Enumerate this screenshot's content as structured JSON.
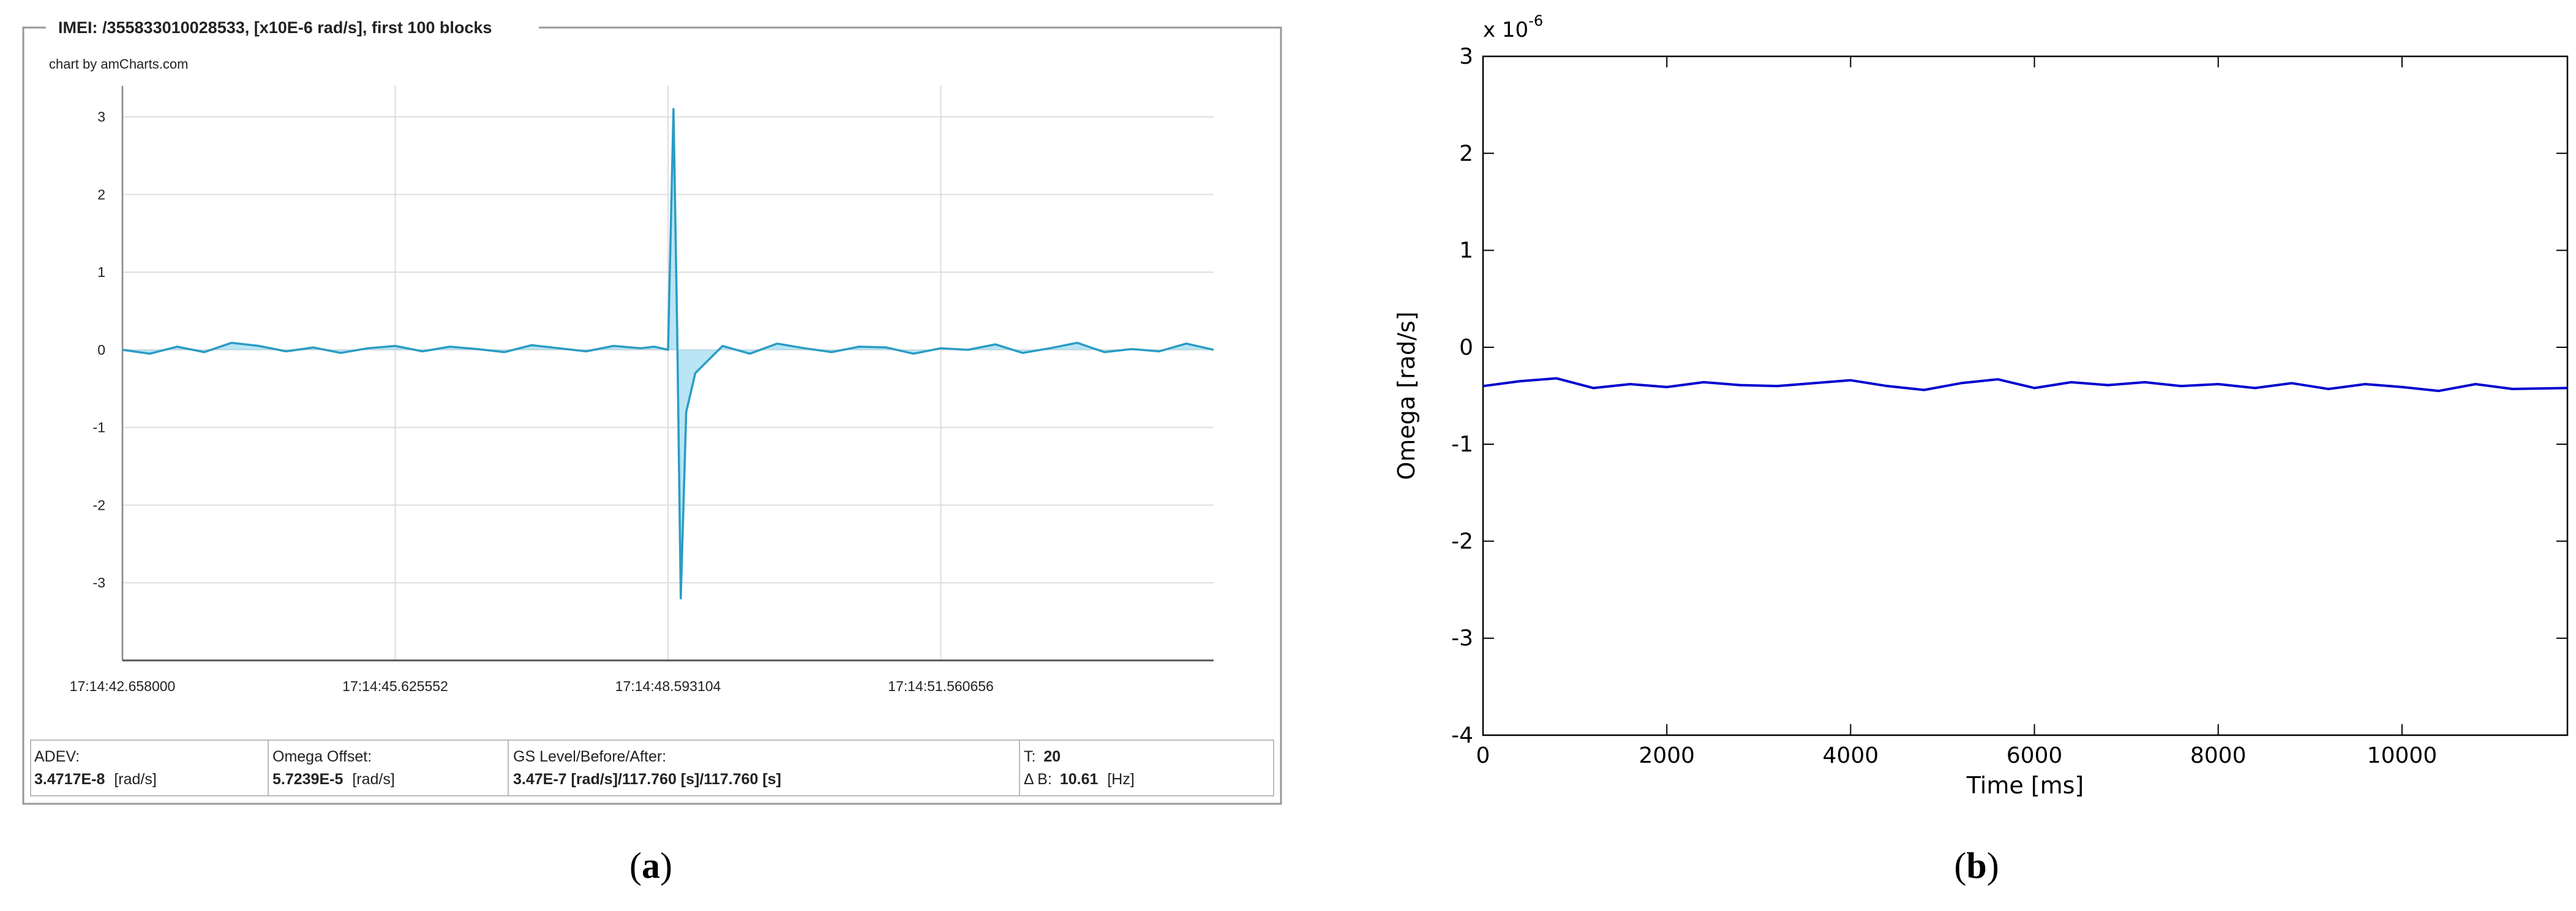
{
  "panel_a": {
    "legend_title": "IMEI: /355833010028533, [x10E-6 rad/s], first 100 blocks",
    "credit": "chart by amCharts.com",
    "caption_letter": "a",
    "info": {
      "adev_label": "ADEV:",
      "adev_value": "3.4717E-8",
      "adev_unit": "[rad/s]",
      "offset_label": "Omega Offset:",
      "offset_value": "5.7239E-5",
      "offset_unit": "[rad/s]",
      "gs_label": "GS Level/Before/After:",
      "gs_value": "3.47E-7 [rad/s]/117.760 [s]/117.760 [s]",
      "t_label": "T:",
      "t_value": "20",
      "db_label": "Δ B:",
      "db_value": "10.61",
      "db_unit": "[Hz]"
    }
  },
  "panel_b": {
    "exponent_label": "x 10",
    "exponent_power": "-6",
    "caption_letter": "b"
  },
  "colors": {
    "series_a": "#2a9cc4",
    "fill_a": "#7fd0ec",
    "series_b": "#0000d0",
    "grid_a": "#dddddd",
    "frame": "#888888"
  },
  "chart_data": [
    {
      "type": "area",
      "title": "IMEI: /355833010028533, [x10E-6 rad/s], first 100 blocks",
      "xlabel": "",
      "ylabel": "",
      "x_tick_labels": [
        "17:14:42.658000",
        "17:14:45.625552",
        "17:14:48.593104",
        "17:14:51.560656"
      ],
      "y_ticks": [
        -3,
        -2,
        -1,
        0,
        1,
        2,
        3
      ],
      "ylim": [
        -4.0,
        3.4
      ],
      "xlim": [
        0,
        12
      ],
      "grid": true,
      "series": [
        {
          "name": "Omega",
          "x": [
            0,
            0.3,
            0.6,
            0.9,
            1.2,
            1.5,
            1.8,
            2.1,
            2.4,
            2.7,
            3.0,
            3.3,
            3.6,
            3.9,
            4.2,
            4.5,
            4.8,
            5.1,
            5.4,
            5.7,
            5.85,
            6.0,
            6.06,
            6.1,
            6.14,
            6.2,
            6.3,
            6.6,
            6.9,
            7.2,
            7.5,
            7.8,
            8.1,
            8.4,
            8.7,
            9.0,
            9.3,
            9.6,
            9.9,
            10.2,
            10.5,
            10.8,
            11.1,
            11.4,
            11.7,
            12.0
          ],
          "values": [
            0.0,
            -0.05,
            0.04,
            -0.03,
            0.09,
            0.05,
            -0.02,
            0.03,
            -0.04,
            0.02,
            0.05,
            -0.02,
            0.04,
            0.01,
            -0.03,
            0.06,
            0.02,
            -0.02,
            0.05,
            0.02,
            0.04,
            0.0,
            3.1,
            0.3,
            -3.2,
            -0.8,
            -0.3,
            0.05,
            -0.05,
            0.08,
            0.02,
            -0.03,
            0.04,
            0.03,
            -0.05,
            0.02,
            0.0,
            0.07,
            -0.04,
            0.02,
            0.09,
            -0.03,
            0.01,
            -0.02,
            0.08,
            0.0
          ]
        }
      ]
    },
    {
      "type": "line",
      "title": "",
      "xlabel": "Time [ms]",
      "ylabel": "Omega [rad/s]",
      "x_ticks": [
        0,
        2000,
        4000,
        6000,
        8000,
        10000
      ],
      "y_ticks": [
        -4,
        -3,
        -2,
        -1,
        0,
        1,
        2,
        3
      ],
      "xlim": [
        0,
        11800
      ],
      "ylim": [
        -4,
        3
      ],
      "grid": false,
      "series": [
        {
          "name": "Omega",
          "x": [
            0,
            400,
            800,
            1200,
            1600,
            2000,
            2400,
            2800,
            3200,
            3600,
            4000,
            4400,
            4800,
            5200,
            5600,
            6000,
            6400,
            6800,
            7200,
            7600,
            8000,
            8400,
            8800,
            9200,
            9600,
            10000,
            10400,
            10800,
            11200,
            11800
          ],
          "values": [
            -0.4,
            -0.35,
            -0.32,
            -0.42,
            -0.38,
            -0.41,
            -0.36,
            -0.39,
            -0.4,
            -0.37,
            -0.34,
            -0.4,
            -0.44,
            -0.37,
            -0.33,
            -0.42,
            -0.36,
            -0.39,
            -0.36,
            -0.4,
            -0.38,
            -0.42,
            -0.37,
            -0.43,
            -0.38,
            -0.41,
            -0.45,
            -0.38,
            -0.43,
            -0.42
          ]
        }
      ]
    }
  ]
}
